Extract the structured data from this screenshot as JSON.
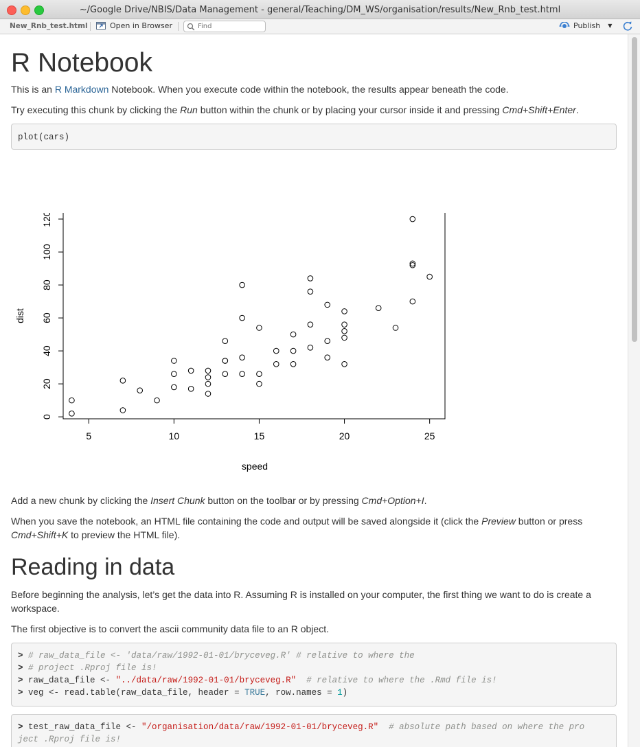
{
  "window": {
    "title": "~/Google Drive/NBIS/Data Management - general/Teaching/DM_WS/organisation/results/New_Rnb_test.html"
  },
  "toolbar": {
    "filename": "New_Rnb_test.html",
    "open_in_browser": "Open in Browser",
    "find_placeholder": "Find",
    "publish": "Publish"
  },
  "doc": {
    "title": "R Notebook",
    "intro_pre": "This is an ",
    "intro_link": "R Markdown",
    "intro_post": " Notebook. When you execute code within the notebook, the results appear beneath the code.",
    "try_pre": "Try executing this chunk by clicking the ",
    "try_run": "Run",
    "try_mid": " button within the chunk or by placing your cursor inside it and pressing ",
    "try_keys": "Cmd+Shift+Enter",
    "try_end": ".",
    "chunk1": "plot(cars)",
    "add_pre": "Add a new chunk by clicking the ",
    "add_insert": "Insert Chunk",
    "add_mid": " button on the toolbar or by pressing ",
    "add_keys": "Cmd+Option+I",
    "add_end": ".",
    "save_pre": "When you save the notebook, an HTML file containing the code and output will be saved alongside it (click the ",
    "save_preview": "Preview",
    "save_mid": " button or press",
    "save_keys": "Cmd+Shift+K",
    "save_end": " to preview the HTML file).",
    "h2": "Reading in data",
    "before_1": "Before beginning the analysis, let’s get the data into R. Assuming R is installed on your computer, the first thing we want to do is create a",
    "before_2": "workspace.",
    "first_obj": "The first objective is to convert the ascii community data file to an R object.",
    "code2_line1_prompt": "> ",
    "code2_line1_comment": "# raw_data_file <- 'data/raw/1992-01-01/bryceveg.R' # relative to where the",
    "code2_line2_comment": "# project .Rproj file is!",
    "code2_line3_var": "raw_data_file <- ",
    "code2_line3_str": "\"../data/raw/1992-01-01/bryceveg.R\"",
    "code2_line3_comment": "  # relative to where the .Rmd file is!",
    "code2_line4_a": "veg <- read.table(raw_data_file, header = ",
    "code2_line4_true": "TRUE",
    "code2_line4_b": ", row.names = ",
    "code2_line4_num": "1",
    "code2_line4_c": ")",
    "code3_line1_var": "test_raw_data_file <- ",
    "code3_line1_str": "\"/organisation/data/raw/1992-01-01/bryceveg.R\"",
    "code3_line1_comment": "  # absolute path based on where the pro",
    "code3_line2_comment": "ject .Rproj file is!"
  },
  "chart_data": {
    "type": "scatter",
    "xlabel": "speed",
    "ylabel": "dist",
    "xlim": [
      3.5,
      25.9
    ],
    "ylim": [
      -1.2,
      124.6
    ],
    "xticks": [
      5,
      10,
      15,
      20,
      25
    ],
    "yticks": [
      0,
      20,
      40,
      60,
      80,
      100,
      120
    ],
    "points": [
      [
        4,
        2
      ],
      [
        4,
        10
      ],
      [
        7,
        4
      ],
      [
        7,
        22
      ],
      [
        8,
        16
      ],
      [
        9,
        10
      ],
      [
        10,
        18
      ],
      [
        10,
        26
      ],
      [
        10,
        34
      ],
      [
        11,
        17
      ],
      [
        11,
        28
      ],
      [
        12,
        14
      ],
      [
        12,
        20
      ],
      [
        12,
        24
      ],
      [
        12,
        28
      ],
      [
        13,
        26
      ],
      [
        13,
        34
      ],
      [
        13,
        34
      ],
      [
        13,
        46
      ],
      [
        14,
        26
      ],
      [
        14,
        36
      ],
      [
        14,
        60
      ],
      [
        14,
        80
      ],
      [
        15,
        20
      ],
      [
        15,
        26
      ],
      [
        15,
        54
      ],
      [
        16,
        32
      ],
      [
        16,
        40
      ],
      [
        17,
        32
      ],
      [
        17,
        40
      ],
      [
        17,
        50
      ],
      [
        18,
        42
      ],
      [
        18,
        56
      ],
      [
        18,
        76
      ],
      [
        18,
        84
      ],
      [
        19,
        36
      ],
      [
        19,
        46
      ],
      [
        19,
        68
      ],
      [
        20,
        32
      ],
      [
        20,
        48
      ],
      [
        20,
        52
      ],
      [
        20,
        56
      ],
      [
        20,
        64
      ],
      [
        22,
        66
      ],
      [
        23,
        54
      ],
      [
        24,
        70
      ],
      [
        24,
        92
      ],
      [
        24,
        93
      ],
      [
        24,
        120
      ],
      [
        25,
        85
      ]
    ]
  }
}
